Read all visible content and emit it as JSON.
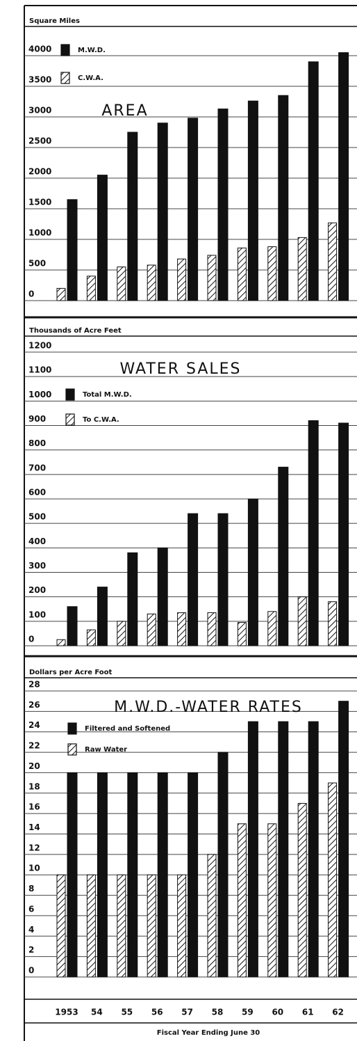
{
  "chart_data": [
    {
      "type": "bar",
      "title": "AREA",
      "y_label": "Square Miles",
      "ylim": [
        0,
        4000
      ],
      "yticks": [
        0,
        500,
        1000,
        1500,
        2000,
        2500,
        3000,
        3500,
        4000
      ],
      "grid": true,
      "series": [
        {
          "name": "C.W.A.",
          "color": "#111111",
          "hatch": true,
          "values": [
            200,
            400,
            550,
            580,
            680,
            740,
            860,
            880,
            1030,
            1270
          ]
        },
        {
          "name": "M.W.D.",
          "color": "#111111",
          "hatch": false,
          "values": [
            1650,
            2050,
            2750,
            2900,
            2980,
            3130,
            3260,
            3350,
            3900,
            4050
          ]
        }
      ]
    },
    {
      "type": "bar",
      "title": "WATER SALES",
      "y_label": "Thousands of Acre Feet",
      "ylim": [
        0,
        1200
      ],
      "yticks": [
        0,
        100,
        200,
        300,
        400,
        500,
        600,
        700,
        800,
        900,
        1000,
        1100,
        1200
      ],
      "grid": true,
      "series": [
        {
          "name": "To C.W.A.",
          "color": "#111111",
          "hatch": true,
          "values": [
            25,
            65,
            100,
            130,
            135,
            135,
            95,
            140,
            200,
            180
          ]
        },
        {
          "name": "Total M.W.D.",
          "color": "#111111",
          "hatch": false,
          "values": [
            160,
            240,
            380,
            400,
            540,
            540,
            600,
            730,
            920,
            910
          ]
        }
      ]
    },
    {
      "type": "bar",
      "title": "M.W.D.-WATER RATES",
      "y_label": "Dollars per Acre Foot",
      "x_label": "Fiscal Year Ending June 30",
      "categories": [
        "1953",
        "54",
        "55",
        "56",
        "57",
        "58",
        "59",
        "60",
        "61",
        "62"
      ],
      "ylim": [
        0,
        28
      ],
      "yticks": [
        0,
        2,
        4,
        6,
        8,
        10,
        12,
        14,
        16,
        18,
        20,
        22,
        24,
        26,
        28
      ],
      "grid": true,
      "series": [
        {
          "name": "Raw Water",
          "color": "#111111",
          "hatch": true,
          "values": [
            10,
            10,
            10,
            10,
            10,
            12,
            15,
            15,
            17,
            19
          ]
        },
        {
          "name": "Filtered and Softened",
          "color": "#111111",
          "hatch": false,
          "values": [
            20,
            20,
            20,
            20,
            20,
            22,
            25,
            25,
            25,
            27
          ]
        }
      ]
    }
  ]
}
